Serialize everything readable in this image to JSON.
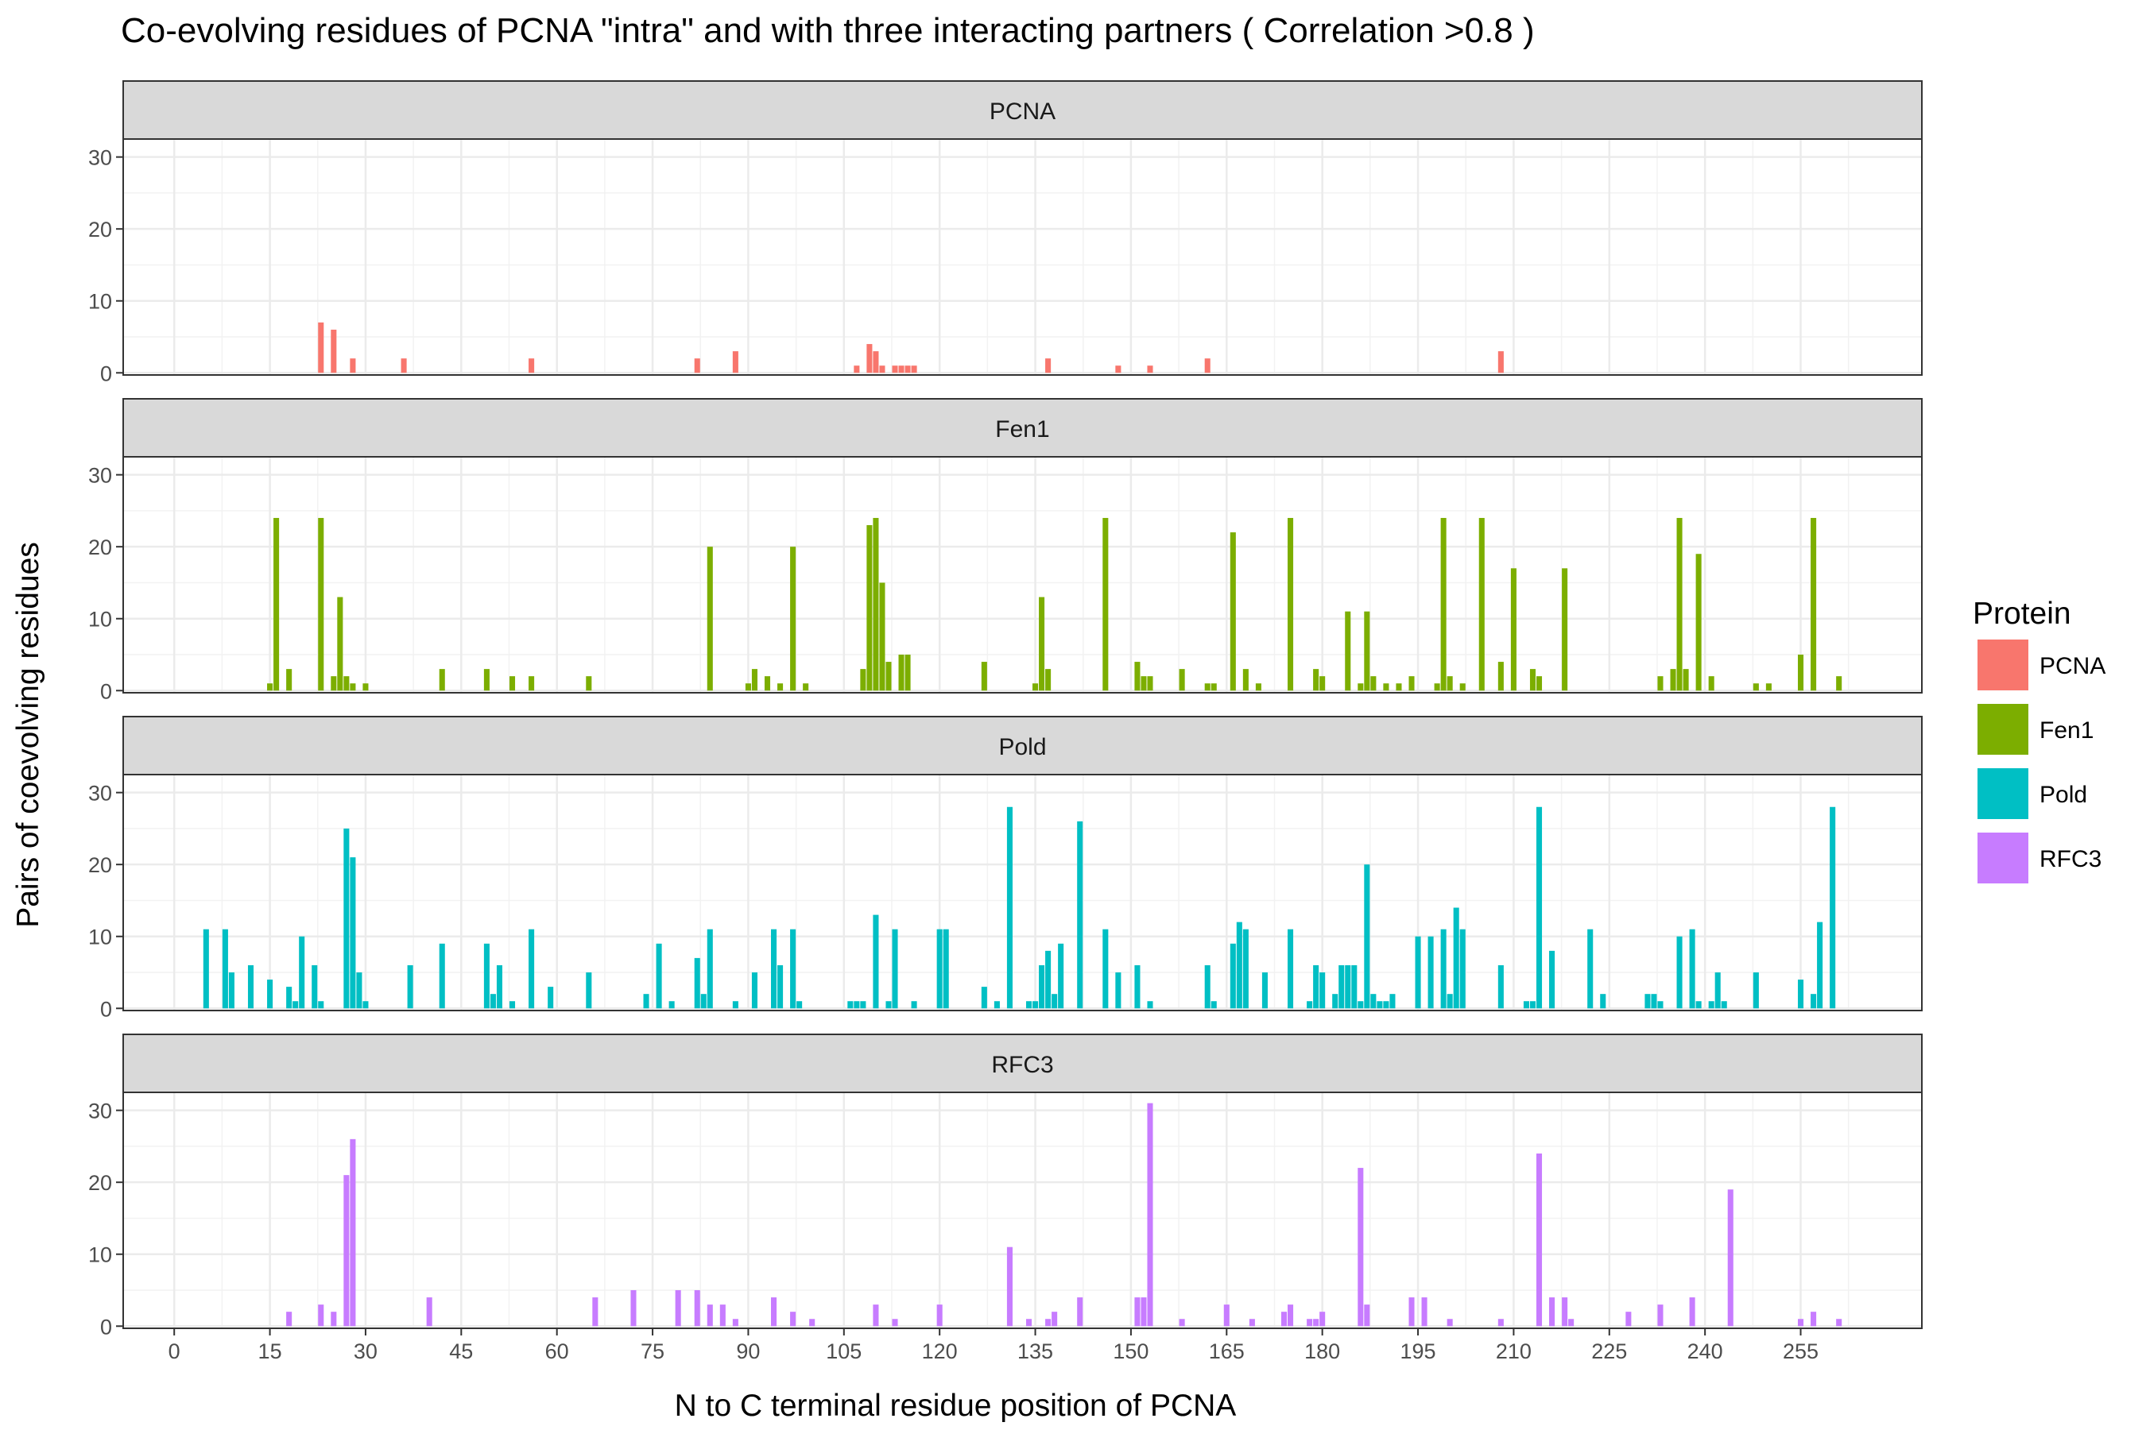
{
  "chart_data": {
    "type": "bar",
    "title": "Co-evolving residues of PCNA \"intra\" and with three interacting partners  ( Correlation >0.8 )",
    "xlabel": "N to C terminal residue position of PCNA",
    "ylabel": "Pairs of coevolving residues",
    "xlim": [
      -8,
      274
    ],
    "ylim": [
      -0.3,
      32.5
    ],
    "x_ticks": [
      0,
      15,
      30,
      45,
      60,
      75,
      90,
      105,
      120,
      135,
      150,
      165,
      180,
      195,
      210,
      225,
      240,
      255
    ],
    "y_ticks": [
      0,
      10,
      20,
      30
    ],
    "grid": true,
    "facet": "vertical",
    "legend": {
      "title": "Protein",
      "position": "right"
    },
    "series": [
      {
        "name": "PCNA",
        "color": "#F8766D",
        "points": [
          [
            23,
            7
          ],
          [
            25,
            6
          ],
          [
            28,
            2
          ],
          [
            36,
            2
          ],
          [
            56,
            2
          ],
          [
            82,
            2
          ],
          [
            88,
            3
          ],
          [
            107,
            1
          ],
          [
            109,
            4
          ],
          [
            110,
            3
          ],
          [
            111,
            1
          ],
          [
            113,
            1
          ],
          [
            114,
            1
          ],
          [
            115,
            1
          ],
          [
            116,
            1
          ],
          [
            137,
            2
          ],
          [
            148,
            1
          ],
          [
            153,
            1
          ],
          [
            162,
            2
          ],
          [
            208,
            3
          ]
        ]
      },
      {
        "name": "Fen1",
        "color": "#7CAE00",
        "points": [
          [
            15,
            1
          ],
          [
            16,
            24
          ],
          [
            18,
            3
          ],
          [
            23,
            24
          ],
          [
            25,
            2
          ],
          [
            26,
            13
          ],
          [
            27,
            2
          ],
          [
            28,
            1
          ],
          [
            30,
            1
          ],
          [
            42,
            3
          ],
          [
            49,
            3
          ],
          [
            53,
            2
          ],
          [
            56,
            2
          ],
          [
            65,
            2
          ],
          [
            84,
            20
          ],
          [
            90,
            1
          ],
          [
            91,
            3
          ],
          [
            93,
            2
          ],
          [
            95,
            1
          ],
          [
            97,
            20
          ],
          [
            99,
            1
          ],
          [
            108,
            3
          ],
          [
            109,
            23
          ],
          [
            110,
            24
          ],
          [
            111,
            15
          ],
          [
            112,
            4
          ],
          [
            114,
            5
          ],
          [
            115,
            5
          ],
          [
            127,
            4
          ],
          [
            135,
            1
          ],
          [
            136,
            13
          ],
          [
            137,
            3
          ],
          [
            146,
            24
          ],
          [
            151,
            4
          ],
          [
            152,
            2
          ],
          [
            153,
            2
          ],
          [
            158,
            3
          ],
          [
            162,
            1
          ],
          [
            163,
            1
          ],
          [
            166,
            22
          ],
          [
            168,
            3
          ],
          [
            170,
            1
          ],
          [
            175,
            24
          ],
          [
            179,
            3
          ],
          [
            180,
            2
          ],
          [
            184,
            11
          ],
          [
            186,
            1
          ],
          [
            187,
            11
          ],
          [
            188,
            2
          ],
          [
            190,
            1
          ],
          [
            192,
            1
          ],
          [
            194,
            2
          ],
          [
            198,
            1
          ],
          [
            199,
            24
          ],
          [
            200,
            2
          ],
          [
            202,
            1
          ],
          [
            205,
            24
          ],
          [
            208,
            4
          ],
          [
            210,
            17
          ],
          [
            213,
            3
          ],
          [
            214,
            2
          ],
          [
            218,
            17
          ],
          [
            233,
            2
          ],
          [
            235,
            3
          ],
          [
            236,
            24
          ],
          [
            237,
            3
          ],
          [
            239,
            19
          ],
          [
            241,
            2
          ],
          [
            248,
            1
          ],
          [
            250,
            1
          ],
          [
            255,
            5
          ],
          [
            257,
            24
          ],
          [
            261,
            2
          ]
        ]
      },
      {
        "name": "Pold",
        "color": "#00BFC4",
        "points": [
          [
            5,
            11
          ],
          [
            8,
            11
          ],
          [
            9,
            5
          ],
          [
            12,
            6
          ],
          [
            15,
            4
          ],
          [
            18,
            3
          ],
          [
            19,
            1
          ],
          [
            20,
            10
          ],
          [
            22,
            6
          ],
          [
            23,
            1
          ],
          [
            27,
            25
          ],
          [
            28,
            21
          ],
          [
            29,
            5
          ],
          [
            30,
            1
          ],
          [
            37,
            6
          ],
          [
            42,
            9
          ],
          [
            49,
            9
          ],
          [
            50,
            2
          ],
          [
            51,
            6
          ],
          [
            53,
            1
          ],
          [
            56,
            11
          ],
          [
            59,
            3
          ],
          [
            65,
            5
          ],
          [
            74,
            2
          ],
          [
            76,
            9
          ],
          [
            78,
            1
          ],
          [
            82,
            7
          ],
          [
            83,
            2
          ],
          [
            84,
            11
          ],
          [
            88,
            1
          ],
          [
            91,
            5
          ],
          [
            94,
            11
          ],
          [
            95,
            6
          ],
          [
            97,
            11
          ],
          [
            98,
            1
          ],
          [
            106,
            1
          ],
          [
            107,
            1
          ],
          [
            108,
            1
          ],
          [
            110,
            13
          ],
          [
            112,
            1
          ],
          [
            113,
            11
          ],
          [
            116,
            1
          ],
          [
            120,
            11
          ],
          [
            121,
            11
          ],
          [
            127,
            3
          ],
          [
            129,
            1
          ],
          [
            131,
            28
          ],
          [
            134,
            1
          ],
          [
            135,
            1
          ],
          [
            136,
            6
          ],
          [
            137,
            8
          ],
          [
            138,
            2
          ],
          [
            139,
            9
          ],
          [
            142,
            26
          ],
          [
            146,
            11
          ],
          [
            148,
            5
          ],
          [
            151,
            6
          ],
          [
            153,
            1
          ],
          [
            162,
            6
          ],
          [
            163,
            1
          ],
          [
            166,
            9
          ],
          [
            167,
            12
          ],
          [
            168,
            11
          ],
          [
            171,
            5
          ],
          [
            175,
            11
          ],
          [
            178,
            1
          ],
          [
            179,
            6
          ],
          [
            180,
            5
          ],
          [
            182,
            2
          ],
          [
            183,
            6
          ],
          [
            184,
            6
          ],
          [
            185,
            6
          ],
          [
            186,
            1
          ],
          [
            187,
            20
          ],
          [
            188,
            2
          ],
          [
            189,
            1
          ],
          [
            190,
            1
          ],
          [
            191,
            2
          ],
          [
            195,
            10
          ],
          [
            197,
            10
          ],
          [
            199,
            11
          ],
          [
            200,
            2
          ],
          [
            201,
            14
          ],
          [
            202,
            11
          ],
          [
            208,
            6
          ],
          [
            212,
            1
          ],
          [
            213,
            1
          ],
          [
            214,
            28
          ],
          [
            216,
            8
          ],
          [
            222,
            11
          ],
          [
            224,
            2
          ],
          [
            231,
            2
          ],
          [
            232,
            2
          ],
          [
            233,
            1
          ],
          [
            236,
            10
          ],
          [
            238,
            11
          ],
          [
            239,
            1
          ],
          [
            241,
            1
          ],
          [
            242,
            5
          ],
          [
            243,
            1
          ],
          [
            248,
            5
          ],
          [
            255,
            4
          ],
          [
            257,
            2
          ],
          [
            258,
            12
          ],
          [
            260,
            28
          ]
        ]
      },
      {
        "name": "RFC3",
        "color": "#C77CFF",
        "points": [
          [
            18,
            2
          ],
          [
            23,
            3
          ],
          [
            25,
            2
          ],
          [
            27,
            21
          ],
          [
            28,
            26
          ],
          [
            40,
            4
          ],
          [
            66,
            4
          ],
          [
            72,
            5
          ],
          [
            79,
            5
          ],
          [
            82,
            5
          ],
          [
            84,
            3
          ],
          [
            86,
            3
          ],
          [
            88,
            1
          ],
          [
            94,
            4
          ],
          [
            97,
            2
          ],
          [
            100,
            1
          ],
          [
            110,
            3
          ],
          [
            113,
            1
          ],
          [
            120,
            3
          ],
          [
            131,
            11
          ],
          [
            134,
            1
          ],
          [
            137,
            1
          ],
          [
            138,
            2
          ],
          [
            142,
            4
          ],
          [
            151,
            4
          ],
          [
            152,
            4
          ],
          [
            153,
            31
          ],
          [
            158,
            1
          ],
          [
            165,
            3
          ],
          [
            169,
            1
          ],
          [
            174,
            2
          ],
          [
            175,
            3
          ],
          [
            178,
            1
          ],
          [
            179,
            1
          ],
          [
            180,
            2
          ],
          [
            186,
            22
          ],
          [
            187,
            3
          ],
          [
            194,
            4
          ],
          [
            196,
            4
          ],
          [
            200,
            1
          ],
          [
            208,
            1
          ],
          [
            214,
            24
          ],
          [
            216,
            4
          ],
          [
            218,
            4
          ],
          [
            219,
            1
          ],
          [
            228,
            2
          ],
          [
            233,
            3
          ],
          [
            238,
            4
          ],
          [
            244,
            19
          ],
          [
            255,
            1
          ],
          [
            257,
            2
          ],
          [
            261,
            1
          ]
        ]
      }
    ]
  }
}
